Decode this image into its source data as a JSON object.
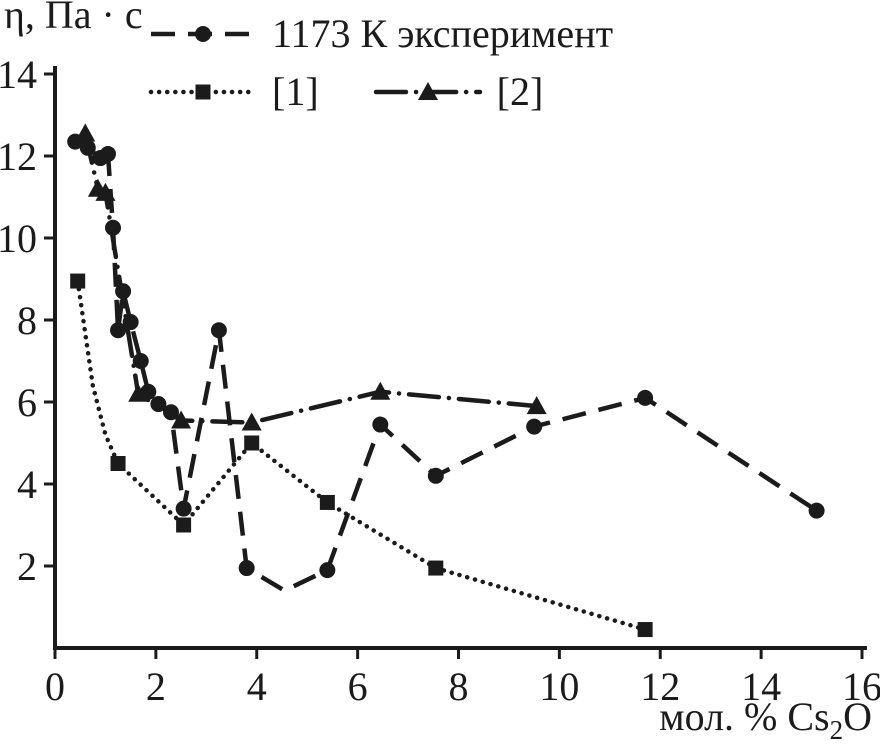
{
  "axes": {
    "y_title": "η, Па · с",
    "x_title_prefix": "мол. % Cs",
    "x_title_sub": "2",
    "x_title_suffix": "O"
  },
  "chart_data": {
    "type": "line",
    "title": "",
    "ylabel": "η, Па · с",
    "xlabel": "мол. % Cs2O",
    "xlim": [
      0,
      16
    ],
    "ylim": [
      0,
      14
    ],
    "xticks": [
      0,
      2,
      4,
      6,
      8,
      10,
      12,
      14,
      16
    ],
    "yticks": [
      2,
      4,
      6,
      8,
      10,
      12,
      14
    ],
    "grid": false,
    "legend_position": "top-inside",
    "ink_color": "#1b1b1b",
    "series": [
      {
        "name": "1173 К эксперимент",
        "marker": "circle",
        "line": "dashed",
        "points": [
          [
            0.4,
            12.35
          ],
          [
            0.65,
            12.2
          ],
          [
            0.9,
            11.95
          ],
          [
            1.05,
            12.05
          ],
          [
            1.15,
            10.25
          ],
          [
            1.25,
            7.75
          ],
          [
            1.35,
            8.7
          ],
          [
            1.5,
            7.95
          ],
          [
            1.7,
            7.0
          ],
          [
            1.85,
            6.25
          ],
          [
            2.05,
            5.95
          ],
          [
            2.3,
            5.75
          ],
          [
            2.55,
            3.4
          ],
          [
            3.25,
            7.75
          ],
          [
            3.8,
            1.95
          ],
          [
            5.4,
            1.9
          ],
          [
            6.45,
            5.45
          ],
          [
            7.55,
            4.2
          ],
          [
            9.5,
            5.4
          ],
          [
            11.7,
            6.1
          ],
          [
            15.1,
            3.35
          ]
        ],
        "line_points": [
          [
            0.4,
            12.35
          ],
          [
            0.65,
            12.2
          ],
          [
            0.9,
            11.95
          ],
          [
            1.05,
            12.05
          ],
          [
            1.15,
            10.25
          ],
          [
            1.25,
            7.75
          ],
          [
            1.35,
            8.7
          ],
          [
            1.5,
            7.95
          ],
          [
            1.7,
            7.0
          ],
          [
            1.85,
            6.25
          ],
          [
            2.05,
            5.95
          ],
          [
            2.3,
            5.75
          ],
          [
            2.55,
            3.4
          ],
          [
            3.25,
            7.75
          ],
          [
            3.8,
            1.95
          ],
          [
            4.55,
            1.4
          ],
          [
            5.4,
            1.9
          ],
          [
            6.45,
            5.45
          ],
          [
            7.55,
            4.2
          ],
          [
            9.5,
            5.4
          ],
          [
            11.7,
            6.1
          ],
          [
            15.1,
            3.35
          ]
        ]
      },
      {
        "name": "[1]",
        "marker": "square",
        "line": "dotted",
        "points": [
          [
            0.45,
            8.95
          ],
          [
            1.25,
            4.5
          ],
          [
            2.55,
            3.0
          ],
          [
            3.9,
            5.0
          ],
          [
            5.4,
            3.55
          ],
          [
            7.55,
            1.95
          ],
          [
            11.7,
            0.45
          ]
        ],
        "line_points": [
          [
            0.45,
            8.95
          ],
          [
            0.75,
            6.4
          ],
          [
            1.0,
            5.2
          ],
          [
            1.25,
            4.5
          ],
          [
            2.55,
            3.0
          ],
          [
            3.9,
            5.0
          ],
          [
            5.4,
            3.55
          ],
          [
            7.55,
            1.95
          ],
          [
            11.7,
            0.45
          ]
        ]
      },
      {
        "name": "[2]",
        "marker": "triangle",
        "line": "dashdot",
        "points": [
          [
            0.6,
            12.55
          ],
          [
            0.85,
            11.2
          ],
          [
            1.0,
            11.1
          ],
          [
            1.65,
            6.2
          ],
          [
            2.5,
            5.55
          ],
          [
            3.9,
            5.5
          ],
          [
            6.45,
            6.25
          ],
          [
            9.55,
            5.9
          ]
        ]
      }
    ]
  },
  "legend": {
    "items": [
      {
        "label": "1173 К эксперимент"
      },
      {
        "label": "[1]"
      },
      {
        "label": "[2]"
      }
    ]
  }
}
